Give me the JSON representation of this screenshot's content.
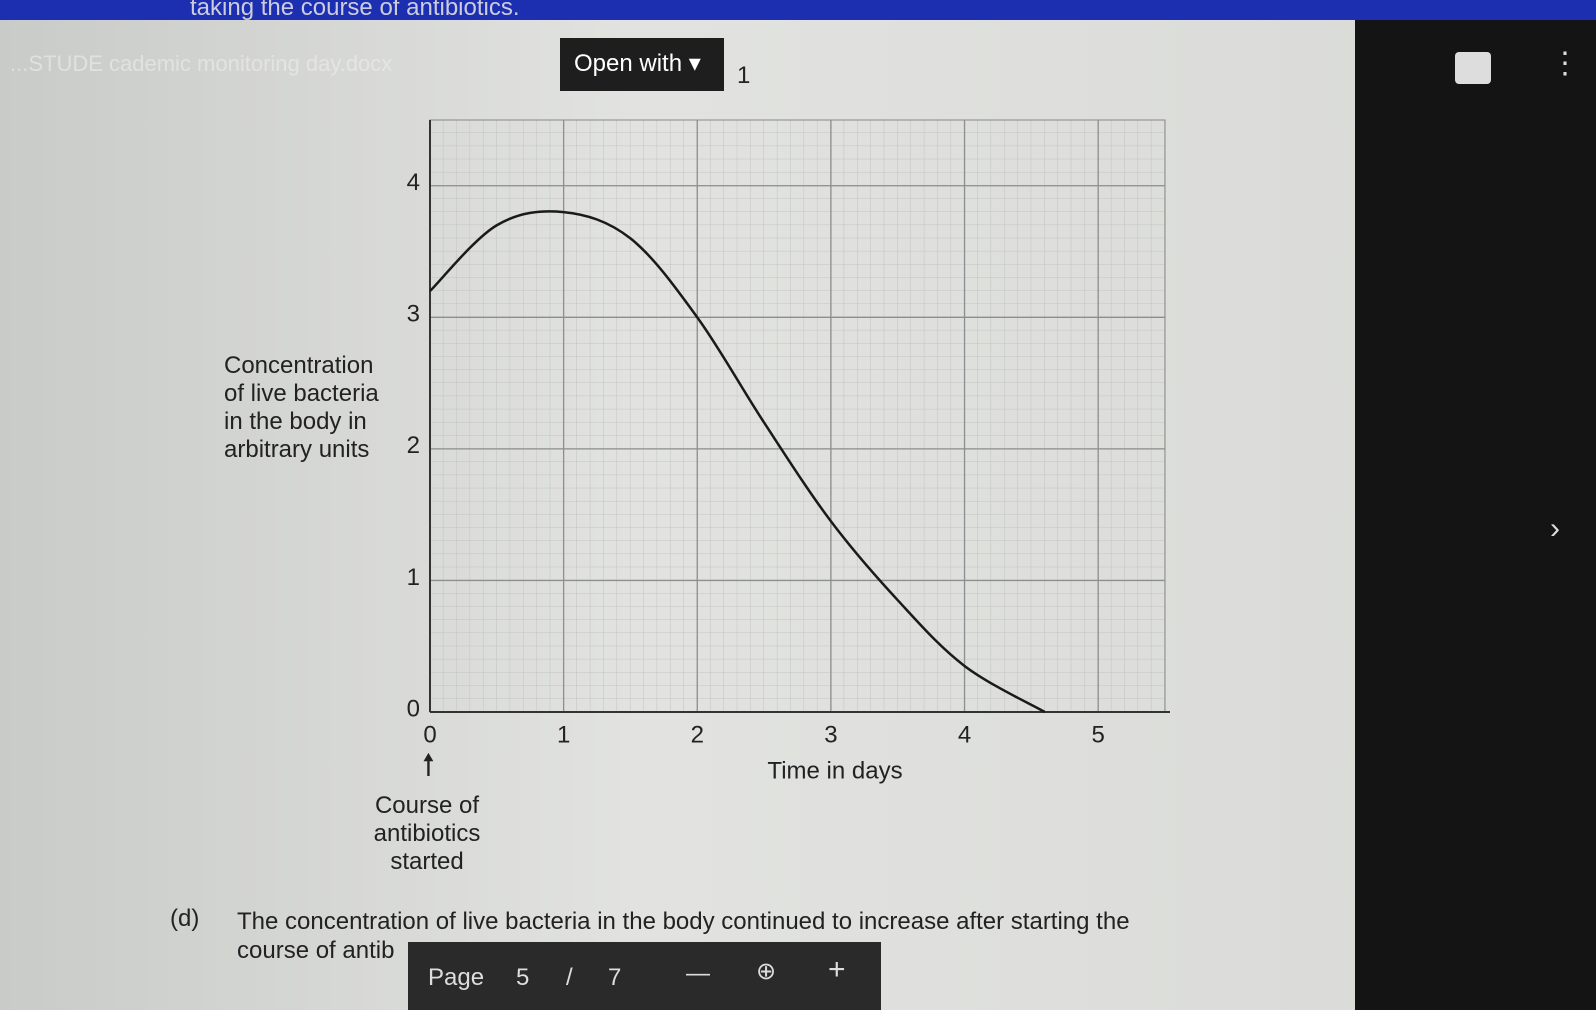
{
  "header": {
    "top_text": "taking the course of antibiotics.",
    "breadcrumb": "...STUDE   cademic monitoring day.docx",
    "open_with": "Open with",
    "badge": "1"
  },
  "chart_data": {
    "type": "line",
    "ylabel": "Concentration of live bacteria in the body in arbitrary units",
    "xlabel": "Time in days",
    "annotation": "Course of antibiotics started",
    "x": [
      0,
      0.5,
      1,
      1.5,
      2,
      2.5,
      3,
      3.5,
      4,
      4.6
    ],
    "series": [
      {
        "color": "#1a1a1a",
        "values": [
          3.2,
          3.7,
          3.8,
          3.6,
          3.0,
          2.2,
          1.45,
          0.85,
          0.35,
          0
        ]
      }
    ],
    "xlim": [
      0,
      5.5
    ],
    "ylim": [
      0,
      4.5
    ],
    "xticks": [
      0,
      1,
      2,
      3,
      4,
      5
    ],
    "yticks": [
      0,
      1,
      2,
      3,
      4
    ],
    "grid": true
  },
  "question": {
    "label": "(d)",
    "text": "The concentration of live bacteria in the body continued to increase after starting the",
    "text2": "course of antib"
  },
  "pager": {
    "label": "Page",
    "current": "5",
    "sep": "/",
    "total": "7"
  }
}
